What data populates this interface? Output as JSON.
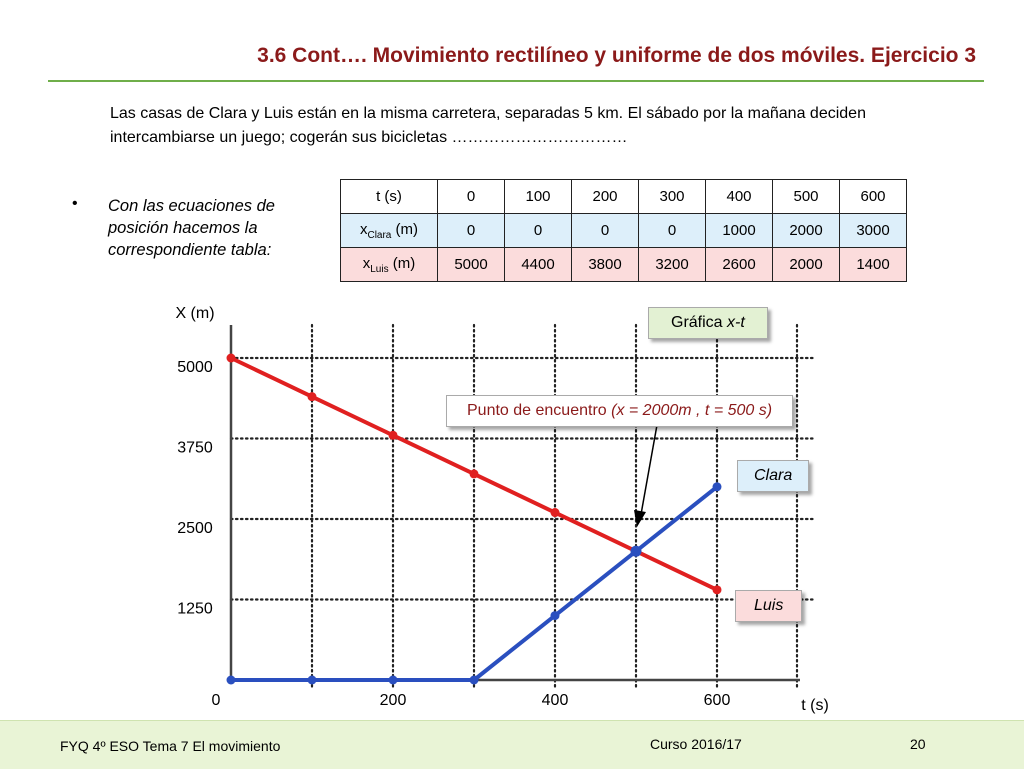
{
  "title": "3.6  Cont…. Movimiento rectilíneo y uniforme de dos móviles. Ejercicio 3",
  "intro": "Las casas de Clara y Luis están en la misma carretera, separadas 5 km. El sábado por la mañana deciden intercambiarse un juego; cogerán sus bicicletas ……………………………",
  "bullet_symbol": "•",
  "bullet_text": "Con las ecuaciones  de posición hacemos la correspondiente tabla:",
  "table": {
    "row_t": {
      "label": "t (s)",
      "values": [
        "0",
        "100",
        "200",
        "300",
        "400",
        "500",
        "600"
      ]
    },
    "row_clara": {
      "label_main": "x",
      "label_sub": "Clara",
      "label_unit": " (m)",
      "values": [
        "0",
        "0",
        "0",
        "0",
        "1000",
        "2000",
        "3000"
      ]
    },
    "row_luis": {
      "label_main": "x",
      "label_sub": "Luis",
      "label_unit": " (m)",
      "values": [
        "5000",
        "4400",
        "3800",
        "3200",
        "2600",
        "2000",
        "1400"
      ]
    }
  },
  "chart_data": {
    "type": "line",
    "ylabel": "X (m)",
    "xlabel": "t (s)",
    "xlim": [
      0,
      700
    ],
    "ylim": [
      0,
      5400
    ],
    "x_ticks": [
      0,
      200,
      400,
      600
    ],
    "y_ticks": [
      1250,
      2500,
      3750,
      5000
    ],
    "x_tick_labels": [
      "0",
      "200",
      "400",
      "600"
    ],
    "y_tick_labels": [
      "1250",
      "2500",
      "3750",
      "5000"
    ],
    "grid": true,
    "x": [
      0,
      100,
      200,
      300,
      400,
      500,
      600
    ],
    "series": [
      {
        "name": "Clara",
        "color": "#2a4fbf",
        "values": [
          0,
          0,
          0,
          0,
          1000,
          2000,
          3000
        ]
      },
      {
        "name": "Luis",
        "color": "#e02020",
        "values": [
          5000,
          4400,
          3800,
          3200,
          2600,
          2000,
          1400
        ]
      }
    ],
    "meeting_point": {
      "t": 500,
      "x": 2000
    },
    "annotations": {
      "graph_title_prefix": "Gráfica ",
      "graph_title_italic": "x-t",
      "meeting_prefix": "Punto de encuentro  ",
      "meeting_italic": "(x = 2000m , t = 500 s)"
    },
    "legend_bg": {
      "Clara": "#ddeffa",
      "Luis": "#fbdcdc"
    }
  },
  "footer": {
    "left": "FYQ 4º ESO  Tema  7 El movimiento",
    "middle": "Curso 2016/17",
    "page": "20"
  }
}
